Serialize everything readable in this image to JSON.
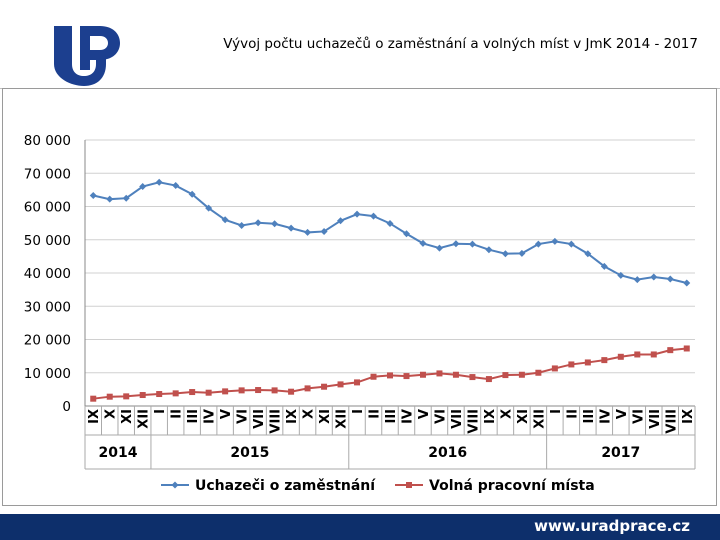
{
  "header": {
    "title": "Vývoj počtu uchazečů o zaměstnání a volných míst v JmK 2014 - 2017",
    "logo_icon": "up-logo-icon"
  },
  "footer": {
    "url": "www.uradprace.cz",
    "bg_color": "#0d2f6b"
  },
  "chart_data": {
    "type": "line",
    "title": "Vývoj počtu uchazečů o zaměstnání a volných míst v JmK 2014 - 2017",
    "xlabel": "",
    "ylabel": "",
    "ylim": [
      0,
      80000
    ],
    "yticks": [
      0,
      10000,
      20000,
      30000,
      40000,
      50000,
      60000,
      70000,
      80000
    ],
    "ytick_labels": [
      "0",
      "10 000",
      "20 000",
      "30 000",
      "40 000",
      "50 000",
      "60 000",
      "70 000",
      "80 000"
    ],
    "grid": true,
    "legend": "bottom",
    "categories": [
      "IX",
      "X",
      "XI",
      "XII",
      "I",
      "II",
      "III",
      "IV",
      "V",
      "VI",
      "VII",
      "VIII",
      "IX",
      "X",
      "XI",
      "XII",
      "I",
      "II",
      "III",
      "IV",
      "V",
      "VI",
      "VII",
      "VIII",
      "IX",
      "X",
      "XI",
      "XII",
      "I",
      "II",
      "III",
      "IV",
      "V",
      "VI",
      "VII",
      "VIII",
      "IX"
    ],
    "year_groups": [
      {
        "label": "2014",
        "start": 0,
        "count": 4
      },
      {
        "label": "2015",
        "start": 4,
        "count": 12
      },
      {
        "label": "2016",
        "start": 16,
        "count": 12
      },
      {
        "label": "2017",
        "start": 28,
        "count": 9
      }
    ],
    "series": [
      {
        "name": "Uchazeči o zaměstnání",
        "color": "#4f81bd",
        "marker": "diamond",
        "values": [
          63300,
          62200,
          62500,
          66000,
          67300,
          66300,
          63700,
          59500,
          56000,
          54300,
          55100,
          54800,
          53500,
          52200,
          52500,
          55700,
          57700,
          57100,
          54900,
          51800,
          48900,
          47500,
          48800,
          48700,
          47000,
          45800,
          45900,
          48700,
          49500,
          48700,
          45800,
          42000,
          39300,
          38000,
          38800,
          38200,
          37000
        ]
      },
      {
        "name": "Volná pracovní místa",
        "color": "#c0504d",
        "marker": "square",
        "values": [
          2200,
          2800,
          2900,
          3300,
          3600,
          3800,
          4200,
          4000,
          4400,
          4700,
          4800,
          4700,
          4300,
          5300,
          5800,
          6500,
          7100,
          8800,
          9200,
          9000,
          9400,
          9800,
          9400,
          8700,
          8100,
          9300,
          9400,
          10000,
          11300,
          12500,
          13100,
          13800,
          14800,
          15500,
          15500,
          16800,
          17300
        ]
      }
    ]
  }
}
